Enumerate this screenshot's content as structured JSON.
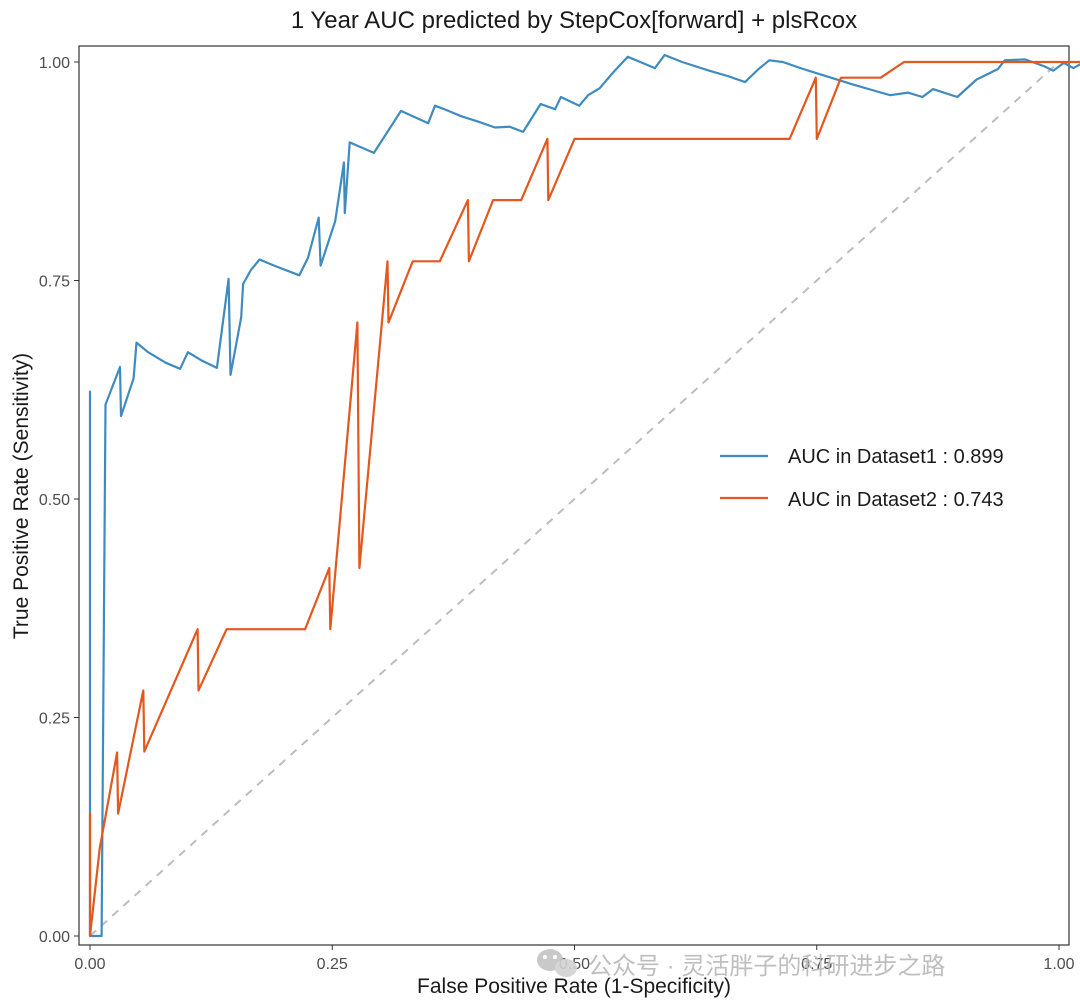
{
  "chart_data": {
    "type": "line",
    "title": "1 Year AUC predicted by StepCox[forward] + plsRcox",
    "xlabel": "False Positive Rate (1-Specificity)",
    "ylabel": "True Positive Rate (Sensitivity)",
    "xlim": [
      0,
      1
    ],
    "ylim": [
      0,
      1
    ],
    "xticks": [
      "0.00",
      "0.25",
      "0.50",
      "0.75",
      "1.00"
    ],
    "yticks": [
      "0.00",
      "0.25",
      "0.50",
      "0.75",
      "1.00"
    ],
    "grid": false,
    "legend_position": "right-middle",
    "reference_line": {
      "x": [
        0,
        1
      ],
      "y": [
        0,
        1
      ],
      "style": "dashed",
      "color": "#bdbdbd"
    },
    "series": [
      {
        "name": "AUC in Dataset1 : 0.899",
        "color": "#3f8bc0",
        "points": [
          [
            0,
            0
          ],
          [
            0,
            0.623
          ],
          [
            0,
            0
          ],
          [
            0.012,
            0
          ],
          [
            0.012,
            0
          ],
          [
            0.016,
            0.608
          ],
          [
            0.031,
            0.651
          ],
          [
            0.032,
            0.595
          ],
          [
            0.045,
            0.638
          ],
          [
            0.048,
            0.679
          ],
          [
            0.06,
            0.668
          ],
          [
            0.078,
            0.656
          ],
          [
            0.093,
            0.649
          ],
          [
            0.101,
            0.668
          ],
          [
            0.116,
            0.658
          ],
          [
            0.131,
            0.65
          ],
          [
            0.143,
            0.752
          ],
          [
            0.145,
            0.642
          ],
          [
            0.156,
            0.708
          ],
          [
            0.158,
            0.746
          ],
          [
            0.166,
            0.762
          ],
          [
            0.175,
            0.774
          ],
          [
            0.19,
            0.767
          ],
          [
            0.216,
            0.756
          ],
          [
            0.225,
            0.776
          ],
          [
            0.236,
            0.822
          ],
          [
            0.238,
            0.767
          ],
          [
            0.253,
            0.818
          ],
          [
            0.262,
            0.885
          ],
          [
            0.263,
            0.827
          ],
          [
            0.268,
            0.908
          ],
          [
            0.293,
            0.896
          ],
          [
            0.311,
            0.927
          ],
          [
            0.321,
            0.944
          ],
          [
            0.349,
            0.93
          ],
          [
            0.356,
            0.95
          ],
          [
            0.368,
            0.945
          ],
          [
            0.383,
            0.938
          ],
          [
            0.4,
            0.932
          ],
          [
            0.418,
            0.925
          ],
          [
            0.433,
            0.926
          ],
          [
            0.447,
            0.92
          ],
          [
            0.465,
            0.952
          ],
          [
            0.48,
            0.946
          ],
          [
            0.486,
            0.96
          ],
          [
            0.505,
            0.95
          ],
          [
            0.514,
            0.962
          ],
          [
            0.526,
            0.97
          ],
          [
            0.539,
            0.987
          ],
          [
            0.555,
            1.006
          ],
          [
            0.583,
            0.993
          ],
          [
            0.593,
            1.008
          ],
          [
            0.611,
            1.0
          ],
          [
            0.639,
            0.99
          ],
          [
            0.658,
            0.984
          ],
          [
            0.676,
            0.977
          ],
          [
            0.69,
            0.992
          ],
          [
            0.701,
            1.002
          ],
          [
            0.715,
            1.0
          ],
          [
            0.736,
            0.992
          ],
          [
            0.756,
            0.985
          ],
          [
            0.788,
            0.974
          ],
          [
            0.807,
            0.968
          ],
          [
            0.826,
            0.962
          ],
          [
            0.844,
            0.965
          ],
          [
            0.859,
            0.96
          ],
          [
            0.87,
            0.969
          ],
          [
            0.895,
            0.96
          ],
          [
            0.915,
            0.98
          ],
          [
            0.937,
            0.992
          ],
          [
            0.944,
            1.002
          ],
          [
            0.965,
            1.003
          ],
          [
            0.985,
            0.995
          ],
          [
            0.994,
            0.99
          ],
          [
            1.005,
            0.999
          ],
          [
            1.015,
            0.993
          ],
          [
            1.026,
            1.0
          ]
        ]
      },
      {
        "name": "AUC in Dataset2 : 0.743",
        "color": "#e2581d",
        "points": [
          [
            0,
            0
          ],
          [
            0,
            0.14
          ],
          [
            0,
            0
          ],
          [
            0.01,
            0.1
          ],
          [
            0.028,
            0.21
          ],
          [
            0.029,
            0.14
          ],
          [
            0.055,
            0.281
          ],
          [
            0.056,
            0.211
          ],
          [
            0.111,
            0.351
          ],
          [
            0.112,
            0.281
          ],
          [
            0.141,
            0.351
          ],
          [
            0.222,
            0.351
          ],
          [
            0.247,
            0.421
          ],
          [
            0.248,
            0.351
          ],
          [
            0.276,
            0.702
          ],
          [
            0.278,
            0.421
          ],
          [
            0.307,
            0.772
          ],
          [
            0.308,
            0.702
          ],
          [
            0.333,
            0.772
          ],
          [
            0.361,
            0.772
          ],
          [
            0.39,
            0.842
          ],
          [
            0.391,
            0.772
          ],
          [
            0.416,
            0.842
          ],
          [
            0.445,
            0.842
          ],
          [
            0.472,
            0.912
          ],
          [
            0.473,
            0.842
          ],
          [
            0.5,
            0.912
          ],
          [
            0.72,
            0.912
          ],
          [
            0.722,
            0.912
          ],
          [
            0.749,
            0.982
          ],
          [
            0.75,
            0.912
          ],
          [
            0.775,
            0.982
          ],
          [
            0.816,
            0.982
          ],
          [
            0.84,
            1.0
          ],
          [
            0.89,
            1.0
          ],
          [
            0.935,
            1.0
          ],
          [
            1.03,
            1.0
          ]
        ]
      }
    ]
  },
  "watermark": {
    "text": "公众号 · 灵活胖子的科研进步之路",
    "icon": "wechat-icon"
  }
}
